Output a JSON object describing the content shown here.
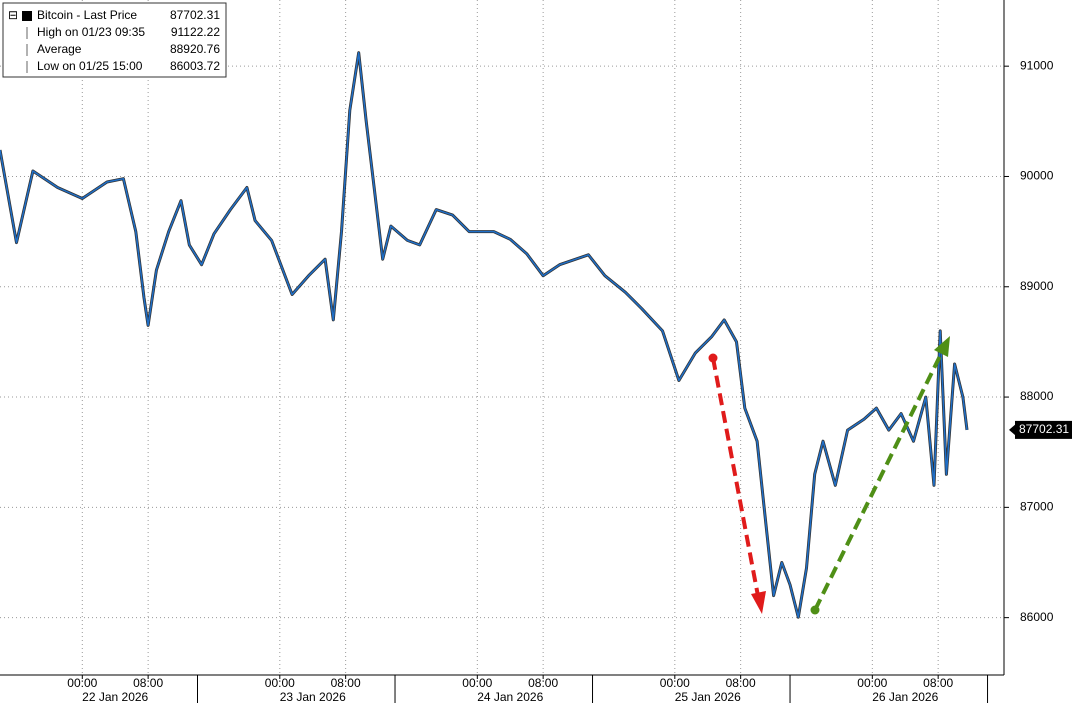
{
  "chart_data": {
    "type": "line",
    "legend": [
      {
        "label": "Bitcoin - Last Price",
        "value": 87702.31
      },
      {
        "label": "High on 01/23 09:35",
        "value": 91122.22
      },
      {
        "label": "Average",
        "value": 88920.76
      },
      {
        "label": "Low on 01/25 15:00",
        "value": 86003.72
      }
    ],
    "x": [
      "21 Jan 2026 14:00",
      "21 Jan 2026 16:00",
      "21 Jan 2026 18:00",
      "21 Jan 2026 21:00",
      "22 Jan 2026 00:00",
      "22 Jan 2026 03:00",
      "22 Jan 2026 05:00",
      "22 Jan 2026 06:30",
      "22 Jan 2026 07:30",
      "22 Jan 2026 08:00",
      "22 Jan 2026 09:00",
      "22 Jan 2026 10:30",
      "22 Jan 2026 12:00",
      "22 Jan 2026 13:00",
      "22 Jan 2026 14:30",
      "22 Jan 2026 16:00",
      "22 Jan 2026 18:00",
      "22 Jan 2026 20:00",
      "22 Jan 2026 21:00",
      "22 Jan 2026 23:00",
      "23 Jan 2026 01:30",
      "23 Jan 2026 03:30",
      "23 Jan 2026 05:30",
      "23 Jan 2026 06:30",
      "23 Jan 2026 07:30",
      "23 Jan 2026 08:30",
      "23 Jan 2026 09:35",
      "23 Jan 2026 10:30",
      "23 Jan 2026 11:30",
      "23 Jan 2026 12:30",
      "23 Jan 2026 13:30",
      "23 Jan 2026 15:30",
      "23 Jan 2026 17:00",
      "23 Jan 2026 19:00",
      "23 Jan 2026 21:00",
      "23 Jan 2026 23:00",
      "24 Jan 2026 02:00",
      "24 Jan 2026 04:00",
      "24 Jan 2026 06:00",
      "24 Jan 2026 08:00",
      "24 Jan 2026 10:00",
      "24 Jan 2026 13:30",
      "24 Jan 2026 15:30",
      "24 Jan 2026 18:00",
      "24 Jan 2026 20:00",
      "24 Jan 2026 22:30",
      "25 Jan 2026 00:30",
      "25 Jan 2026 02:30",
      "25 Jan 2026 04:30",
      "25 Jan 2026 06:00",
      "25 Jan 2026 07:30",
      "25 Jan 2026 08:30",
      "25 Jan 2026 10:00",
      "25 Jan 2026 11:00",
      "25 Jan 2026 12:00",
      "25 Jan 2026 13:00",
      "25 Jan 2026 14:00",
      "25 Jan 2026 15:00",
      "25 Jan 2026 16:00",
      "25 Jan 2026 17:00",
      "25 Jan 2026 18:00",
      "25 Jan 2026 19:30",
      "25 Jan 2026 21:00",
      "25 Jan 2026 23:00",
      "26 Jan 2026 00:30",
      "26 Jan 2026 02:00",
      "26 Jan 2026 03:30",
      "26 Jan 2026 05:00",
      "26 Jan 2026 06:30",
      "26 Jan 2026 07:30",
      "26 Jan 2026 08:15",
      "26 Jan 2026 09:00",
      "26 Jan 2026 10:00",
      "26 Jan 2026 11:00",
      "26 Jan 2026 11:30"
    ],
    "series": [
      {
        "name": "Bitcoin - Last Price",
        "color": "#1f6fc8",
        "values": [
          90240,
          89400,
          90050,
          89900,
          89800,
          89950,
          89980,
          89500,
          88900,
          88650,
          89150,
          89500,
          89780,
          89380,
          89200,
          89480,
          89700,
          89900,
          89600,
          89420,
          88930,
          89100,
          89250,
          88700,
          89500,
          90600,
          91122.22,
          90500,
          89880,
          89250,
          89550,
          89420,
          89380,
          89700,
          89650,
          89500,
          89500,
          89430,
          89300,
          89100,
          89200,
          89290,
          89100,
          88950,
          88800,
          88600,
          88150,
          88400,
          88550,
          88700,
          88500,
          87900,
          87600,
          86900,
          86200,
          86500,
          86300,
          86003.72,
          86450,
          87300,
          87600,
          87200,
          87700,
          87800,
          87900,
          87700,
          87850,
          87600,
          88000,
          87200,
          88600,
          87300,
          88300,
          88000,
          87702.31
        ]
      }
    ],
    "xlim": [
      "21 Jan 2026 14:00",
      "26 Jan 2026 16:00"
    ],
    "xticks": [
      {
        "value": "22 Jan 2026 00:00",
        "label": "00:00"
      },
      {
        "value": "22 Jan 2026 08:00",
        "label": "08:00"
      },
      {
        "value": "23 Jan 2026 00:00",
        "label": "00:00"
      },
      {
        "value": "23 Jan 2026 08:00",
        "label": "08:00"
      },
      {
        "value": "24 Jan 2026 00:00",
        "label": "00:00"
      },
      {
        "value": "24 Jan 2026 08:00",
        "label": "08:00"
      },
      {
        "value": "25 Jan 2026 00:00",
        "label": "00:00"
      },
      {
        "value": "25 Jan 2026 08:00",
        "label": "08:00"
      },
      {
        "value": "26 Jan 2026 00:00",
        "label": "00:00"
      },
      {
        "value": "26 Jan 2026 08:00",
        "label": "08:00"
      }
    ],
    "date_labels": [
      "22 Jan 2026",
      "23 Jan 2026",
      "24 Jan 2026",
      "25 Jan 2026",
      "26 Jan 2026"
    ],
    "ylim": [
      85480,
      91600
    ],
    "yticks": [
      86000,
      87000,
      88000,
      89000,
      90000,
      91000
    ],
    "grid": true
  }
}
